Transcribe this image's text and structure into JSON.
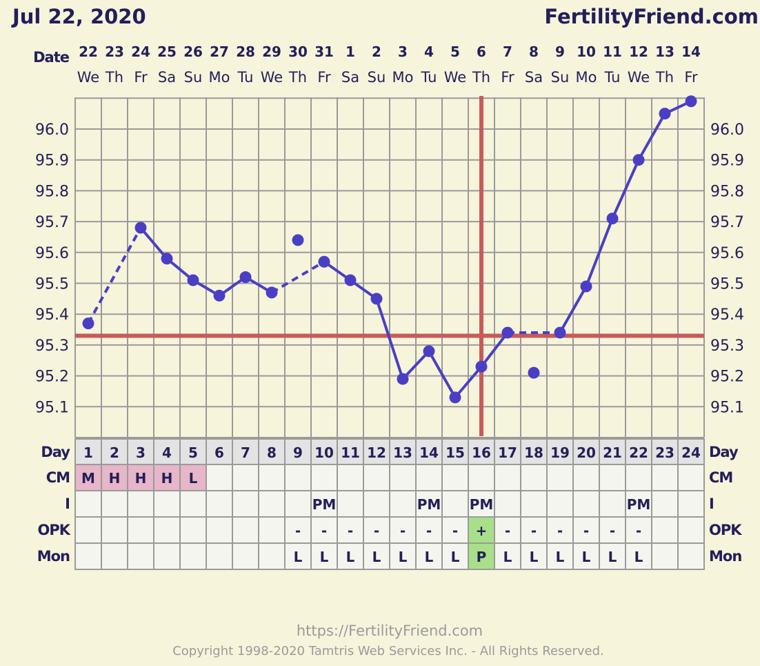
{
  "header": {
    "date": "Jul 22, 2020",
    "site": "FertilityFriend.com"
  },
  "footer": {
    "url": "https://FertilityFriend.com",
    "copyright": "Copyright 1998-2020 Tamtris Web Services Inc. - All Rights Reserved."
  },
  "colors": {
    "line": "#4a3fc4",
    "coverline": "#c85a5a",
    "ovulation_line": "#c85a5a",
    "cm_cell": "#e7b6c8",
    "positive_cell": "#a8e08a",
    "text": "#231f5a",
    "background": "#f7f4dc"
  },
  "chart_data": {
    "type": "line",
    "row_labels": {
      "date": "Date",
      "day": "Day",
      "cm": "CM",
      "intercourse": "I",
      "opk": "OPK",
      "monitor": "Mon"
    },
    "dates": [
      "22",
      "23",
      "24",
      "25",
      "26",
      "27",
      "28",
      "29",
      "30",
      "31",
      "1",
      "2",
      "3",
      "4",
      "5",
      "6",
      "7",
      "8",
      "9",
      "10",
      "11",
      "12",
      "13",
      "14"
    ],
    "weekdays": [
      "We",
      "Th",
      "Fr",
      "Sa",
      "Su",
      "Mo",
      "Tu",
      "We",
      "Th",
      "Fr",
      "Sa",
      "Su",
      "Mo",
      "Tu",
      "We",
      "Th",
      "Fr",
      "Sa",
      "Su",
      "Mo",
      "Tu",
      "We",
      "Th",
      "Fr"
    ],
    "cycle_days": [
      1,
      2,
      3,
      4,
      5,
      6,
      7,
      8,
      9,
      10,
      11,
      12,
      13,
      14,
      15,
      16,
      17,
      18,
      19,
      20,
      21,
      22,
      23,
      24
    ],
    "temperatures": [
      95.37,
      null,
      95.68,
      95.58,
      95.51,
      95.46,
      95.52,
      95.47,
      95.64,
      95.57,
      95.51,
      95.45,
      95.19,
      95.28,
      95.13,
      95.23,
      95.34,
      95.21,
      95.34,
      95.49,
      95.71,
      95.9,
      96.05,
      96.09
    ],
    "excluded_days": [
      9,
      18
    ],
    "coverline": 95.33,
    "ovulation_day": 16,
    "ylim": [
      95.0,
      96.1
    ],
    "yticks": [
      "96.0",
      "95.9",
      "95.8",
      "95.7",
      "95.6",
      "95.5",
      "95.4",
      "95.3",
      "95.2",
      "95.1"
    ],
    "grid": true,
    "cm": [
      "M",
      "H",
      "H",
      "H",
      "L",
      "",
      "",
      "",
      "",
      "",
      "",
      "",
      "",
      "",
      "",
      "",
      "",
      "",
      "",
      "",
      "",
      "",
      "",
      ""
    ],
    "intercourse": [
      "",
      "",
      "",
      "",
      "",
      "",
      "",
      "",
      "",
      "PM",
      "",
      "",
      "",
      "PM",
      "",
      "PM",
      "",
      "",
      "",
      "",
      "",
      "PM",
      "",
      ""
    ],
    "opk": [
      "",
      "",
      "",
      "",
      "",
      "",
      "",
      "",
      "-",
      "-",
      "-",
      "-",
      "-",
      "-",
      "-",
      "+",
      "-",
      "-",
      "-",
      "-",
      "-",
      "-",
      "",
      ""
    ],
    "monitor": [
      "",
      "",
      "",
      "",
      "",
      "",
      "",
      "",
      "L",
      "L",
      "L",
      "L",
      "L",
      "L",
      "L",
      "P",
      "L",
      "L",
      "L",
      "L",
      "L",
      "L",
      "",
      ""
    ]
  }
}
